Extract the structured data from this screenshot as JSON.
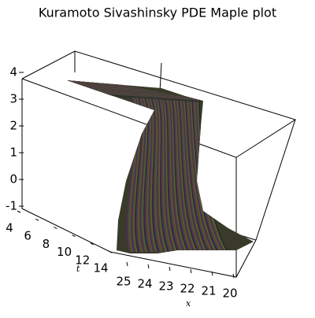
{
  "chart_data": {
    "type": "surface3d",
    "title": "Kuramoto Sivashinsky  PDE  Maple plot",
    "zticks": [
      4,
      3,
      2,
      1,
      0,
      -1
    ],
    "zlim": [
      -1,
      4
    ],
    "tticks": [
      4,
      6,
      8,
      10,
      12,
      14
    ],
    "tlim": [
      4,
      14
    ],
    "xticks": [
      25,
      24,
      23,
      22,
      21,
      20
    ],
    "xlim": [
      20,
      25
    ],
    "t_label": "t",
    "x_label": "x"
  }
}
